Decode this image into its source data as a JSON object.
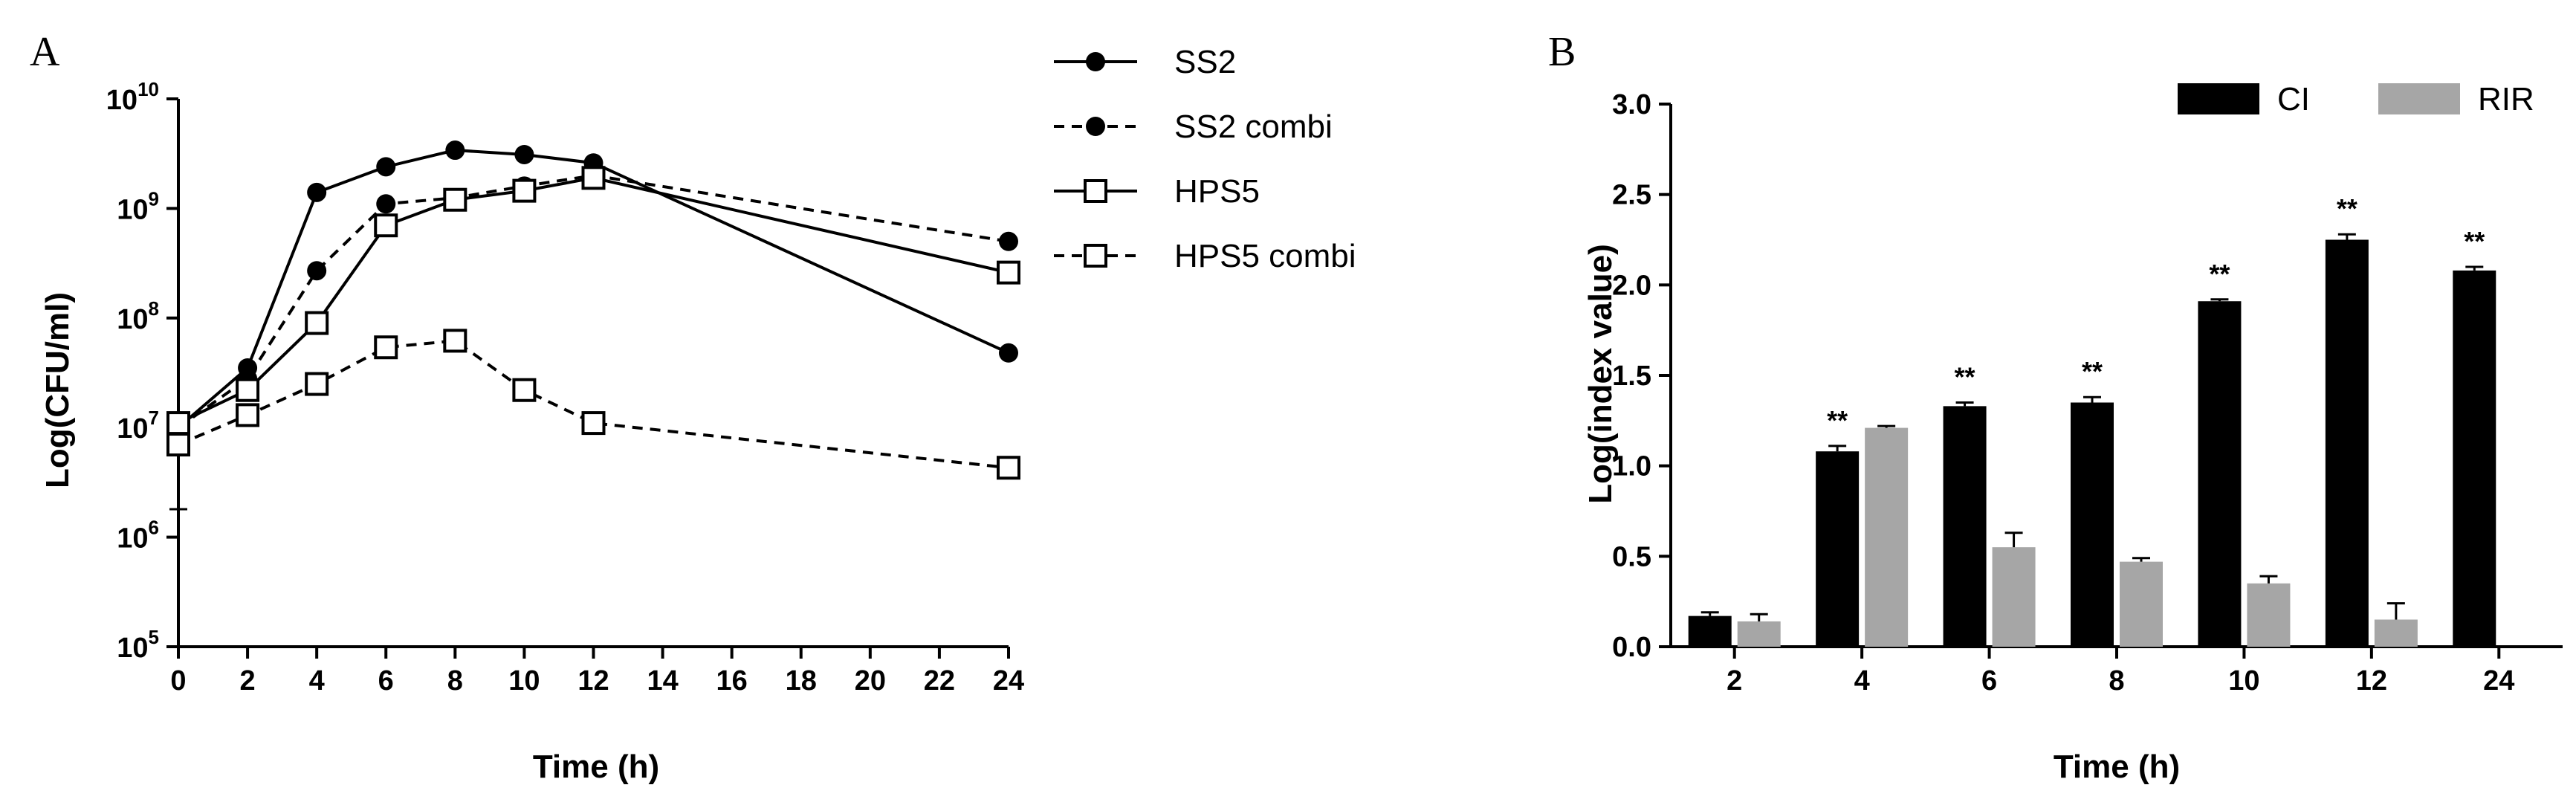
{
  "panels": {
    "A": {
      "letter": "A"
    },
    "B": {
      "letter": "B"
    }
  },
  "chart_data": [
    {
      "id": "A",
      "type": "line",
      "xlabel": "Time (h)",
      "ylabel": "Log(CFU/ml)",
      "y_scale": "log",
      "xlim": [
        0,
        24
      ],
      "ylim": [
        100000,
        10000000000
      ],
      "x_ticks": [
        "0",
        "2",
        "4",
        "6",
        "8",
        "10",
        "12",
        "14",
        "16",
        "18",
        "20",
        "22",
        "24"
      ],
      "y_ticks": [
        {
          "base": "10",
          "exp": "5"
        },
        {
          "base": "10",
          "exp": "6"
        },
        {
          "base": "10",
          "exp": "7"
        },
        {
          "base": "10",
          "exp": "8"
        },
        {
          "base": "10",
          "exp": "9"
        },
        {
          "base": "10",
          "exp": "10"
        }
      ],
      "grid": false,
      "legend_position": "right",
      "series": [
        {
          "name": "SS2",
          "marker": "filled-circle",
          "line": "solid",
          "x": [
            0,
            2,
            4,
            6,
            8,
            10,
            12,
            24
          ],
          "y": [
            10000000,
            35000000,
            1400000000,
            2400000000,
            3400000000,
            3100000000,
            2600000000,
            48000000
          ]
        },
        {
          "name": "SS2 combi",
          "marker": "filled-circle",
          "line": "dashed",
          "x": [
            0,
            2,
            4,
            6,
            8,
            10,
            12,
            24
          ],
          "y": [
            10000000,
            28000000,
            270000000,
            1100000000,
            1250000000,
            1600000000,
            2000000000,
            500000000
          ]
        },
        {
          "name": "HPS5",
          "marker": "open-square",
          "line": "solid",
          "x": [
            0,
            2,
            4,
            6,
            8,
            10,
            12,
            24
          ],
          "y": [
            11000000,
            22000000,
            90000000,
            700000000,
            1200000000,
            1450000000,
            1900000000,
            260000000
          ]
        },
        {
          "name": "HPS5 combi",
          "marker": "open-square",
          "line": "dashed",
          "x": [
            0,
            2,
            4,
            6,
            8,
            10,
            12,
            24
          ],
          "y": [
            7000000,
            13000000,
            25000000,
            54000000,
            62000000,
            22000000,
            11000000,
            4300000
          ],
          "err_low": [
            1800000,
            null,
            null,
            null,
            null,
            null,
            null,
            null
          ]
        }
      ]
    },
    {
      "id": "B",
      "type": "bar",
      "xlabel": "Time (h)",
      "ylabel": "Log(index value)",
      "categories": [
        "2",
        "4",
        "6",
        "8",
        "10",
        "12",
        "24"
      ],
      "ylim": [
        0,
        3.0
      ],
      "y_ticks": [
        "0.0",
        "0.5",
        "1.0",
        "1.5",
        "2.0",
        "2.5",
        "3.0"
      ],
      "grid": false,
      "legend_position": "top-right",
      "series": [
        {
          "name": "CI",
          "color": "#000000",
          "values": [
            0.17,
            1.08,
            1.33,
            1.35,
            1.91,
            2.25,
            2.08
          ],
          "errors": [
            0.02,
            0.03,
            0.02,
            0.03,
            0.01,
            0.03,
            0.02
          ],
          "annotations": [
            "",
            "**",
            "**",
            "**",
            "**",
            "**",
            "**"
          ]
        },
        {
          "name": "RIR",
          "color": "#a6a6a6",
          "values": [
            0.14,
            1.21,
            0.55,
            0.47,
            0.35,
            0.15,
            null
          ],
          "errors": [
            0.04,
            0.01,
            0.08,
            0.02,
            0.04,
            0.09,
            null
          ]
        }
      ]
    }
  ]
}
